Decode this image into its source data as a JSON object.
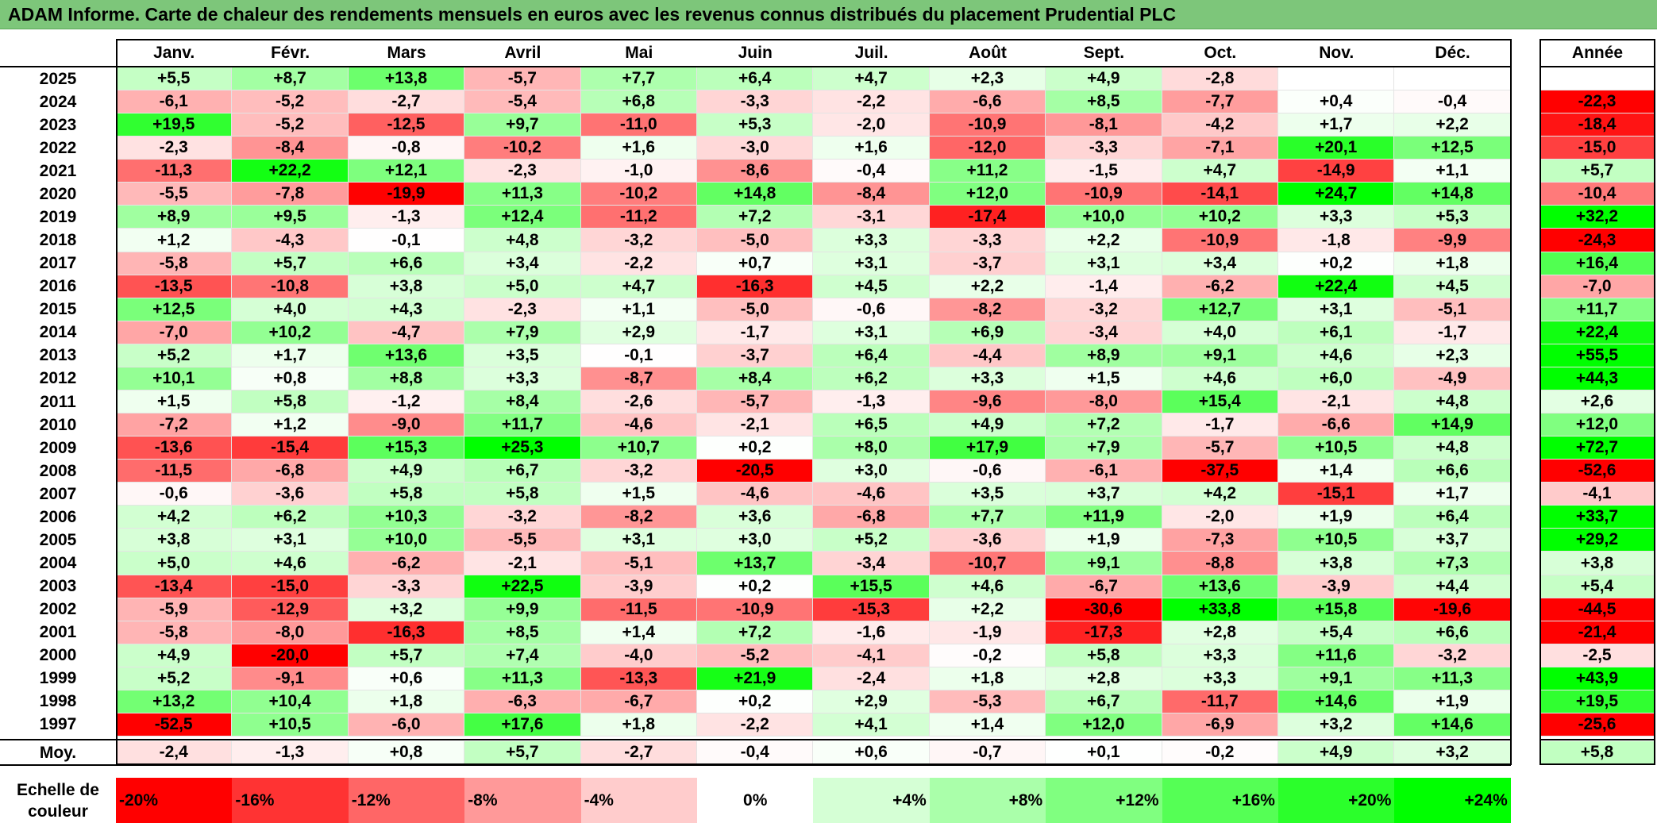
{
  "title": "ADAM Informe. Carte de chaleur des rendements mensuels en euros avec les revenus connus distribués du placement Prudential PLC",
  "months": [
    "Janv.",
    "Févr.",
    "Mars",
    "Avril",
    "Mai",
    "Juin",
    "Juil.",
    "Août",
    "Sept.",
    "Oct.",
    "Nov.",
    "Déc."
  ],
  "annual_header": "Année",
  "avg_label": "Moy.",
  "legend_label": "Echelle de couleur",
  "legend": [
    "-20%",
    "-16%",
    "-12%",
    "-8%",
    "-4%",
    "0%",
    "+4%",
    "+8%",
    "+12%",
    "+16%",
    "+20%",
    "+24%"
  ],
  "colors": {
    "negative": "#ff0000",
    "zero": "#ffffff",
    "positive": "#00ff00",
    "title_bar": "#7dc67a"
  },
  "chart_data": {
    "type": "heatmap",
    "title": "ADAM Informe. Carte de chaleur des rendements mensuels en euros avec les revenus connus distribués du placement Prudential PLC",
    "x": [
      "Janv.",
      "Févr.",
      "Mars",
      "Avril",
      "Mai",
      "Juin",
      "Juil.",
      "Août",
      "Sept.",
      "Oct.",
      "Nov.",
      "Déc.",
      "Année"
    ],
    "rows": [
      {
        "year": "2025",
        "values": [
          "+5,5",
          "+8,7",
          "+13,8",
          "-5,7",
          "+7,7",
          "+6,4",
          "+4,7",
          "+2,3",
          "+4,9",
          "-2,8",
          "",
          ""
        ],
        "annual": ""
      },
      {
        "year": "2024",
        "values": [
          "-6,1",
          "-5,2",
          "-2,7",
          "-5,4",
          "+6,8",
          "-3,3",
          "-2,2",
          "-6,6",
          "+8,5",
          "-7,7",
          "+0,4",
          "-0,4"
        ],
        "annual": "-22,3"
      },
      {
        "year": "2023",
        "values": [
          "+19,5",
          "-5,2",
          "-12,5",
          "+9,7",
          "-11,0",
          "+5,3",
          "-2,0",
          "-10,9",
          "-8,1",
          "-4,2",
          "+1,7",
          "+2,2"
        ],
        "annual": "-18,4"
      },
      {
        "year": "2022",
        "values": [
          "-2,3",
          "-8,4",
          "-0,8",
          "-10,2",
          "+1,6",
          "-3,0",
          "+1,6",
          "-12,0",
          "-3,3",
          "-7,1",
          "+20,1",
          "+12,5"
        ],
        "annual": "-15,0"
      },
      {
        "year": "2021",
        "values": [
          "-11,3",
          "+22,2",
          "+12,1",
          "-2,3",
          "-1,0",
          "-8,6",
          "-0,4",
          "+11,2",
          "-1,5",
          "+4,7",
          "-14,9",
          "+1,1"
        ],
        "annual": "+5,7"
      },
      {
        "year": "2020",
        "values": [
          "-5,5",
          "-7,8",
          "-19,9",
          "+11,3",
          "-10,2",
          "+14,8",
          "-8,4",
          "+12,0",
          "-10,9",
          "-14,1",
          "+24,7",
          "+14,8"
        ],
        "annual": "-10,4"
      },
      {
        "year": "2019",
        "values": [
          "+8,9",
          "+9,5",
          "-1,3",
          "+12,4",
          "-11,2",
          "+7,2",
          "-3,1",
          "-17,4",
          "+10,0",
          "+10,2",
          "+3,3",
          "+5,3"
        ],
        "annual": "+32,2"
      },
      {
        "year": "2018",
        "values": [
          "+1,2",
          "-4,3",
          "-0,1",
          "+4,8",
          "-3,2",
          "-5,0",
          "+3,3",
          "-3,3",
          "+2,2",
          "-10,9",
          "-1,8",
          "-9,9"
        ],
        "annual": "-24,3"
      },
      {
        "year": "2017",
        "values": [
          "-5,8",
          "+5,7",
          "+6,6",
          "+3,4",
          "-2,2",
          "+0,7",
          "+3,1",
          "-3,7",
          "+3,1",
          "+3,4",
          "+0,2",
          "+1,8"
        ],
        "annual": "+16,4"
      },
      {
        "year": "2016",
        "values": [
          "-13,5",
          "-10,8",
          "+3,8",
          "+5,0",
          "+4,7",
          "-16,3",
          "+4,5",
          "+2,2",
          "-1,4",
          "-6,2",
          "+22,4",
          "+4,5"
        ],
        "annual": "-7,0"
      },
      {
        "year": "2015",
        "values": [
          "+12,5",
          "+4,0",
          "+4,3",
          "-2,3",
          "+1,1",
          "-5,0",
          "-0,6",
          "-8,2",
          "-3,2",
          "+12,7",
          "+3,1",
          "-5,1"
        ],
        "annual": "+11,7"
      },
      {
        "year": "2014",
        "values": [
          "-7,0",
          "+10,2",
          "-4,7",
          "+7,9",
          "+2,9",
          "-1,7",
          "+3,1",
          "+6,9",
          "-3,4",
          "+4,0",
          "+6,1",
          "-1,7"
        ],
        "annual": "+22,4"
      },
      {
        "year": "2013",
        "values": [
          "+5,2",
          "+1,7",
          "+13,6",
          "+3,5",
          "-0,1",
          "-3,7",
          "+6,4",
          "-4,4",
          "+8,9",
          "+9,1",
          "+4,6",
          "+2,3"
        ],
        "annual": "+55,5"
      },
      {
        "year": "2012",
        "values": [
          "+10,1",
          "+0,8",
          "+8,8",
          "+3,3",
          "-8,7",
          "+8,4",
          "+6,2",
          "+3,3",
          "+1,5",
          "+4,6",
          "+6,0",
          "-4,9"
        ],
        "annual": "+44,3"
      },
      {
        "year": "2011",
        "values": [
          "+1,5",
          "+5,8",
          "-1,2",
          "+8,4",
          "-2,6",
          "-5,7",
          "-1,3",
          "-9,6",
          "-8,0",
          "+15,4",
          "-2,1",
          "+4,8"
        ],
        "annual": "+2,6"
      },
      {
        "year": "2010",
        "values": [
          "-7,2",
          "+1,2",
          "-9,0",
          "+11,7",
          "-4,6",
          "-2,1",
          "+6,5",
          "+4,9",
          "+7,2",
          "-1,7",
          "-6,6",
          "+14,9"
        ],
        "annual": "+12,0"
      },
      {
        "year": "2009",
        "values": [
          "-13,6",
          "-15,4",
          "+15,3",
          "+25,3",
          "+10,7",
          "+0,2",
          "+8,0",
          "+17,9",
          "+7,9",
          "-5,7",
          "+10,5",
          "+4,8"
        ],
        "annual": "+72,7"
      },
      {
        "year": "2008",
        "values": [
          "-11,5",
          "-6,8",
          "+4,9",
          "+6,7",
          "-3,2",
          "-20,5",
          "+3,0",
          "-0,6",
          "-6,1",
          "-37,5",
          "+1,4",
          "+6,6"
        ],
        "annual": "-52,6"
      },
      {
        "year": "2007",
        "values": [
          "-0,6",
          "-3,6",
          "+5,8",
          "+5,8",
          "+1,5",
          "-4,6",
          "-4,6",
          "+3,5",
          "+3,7",
          "+4,2",
          "-15,1",
          "+1,7"
        ],
        "annual": "-4,1"
      },
      {
        "year": "2006",
        "values": [
          "+4,2",
          "+6,2",
          "+10,3",
          "-3,2",
          "-8,2",
          "+3,6",
          "-6,8",
          "+7,7",
          "+11,9",
          "-2,0",
          "+1,9",
          "+6,4"
        ],
        "annual": "+33,7"
      },
      {
        "year": "2005",
        "values": [
          "+3,8",
          "+3,1",
          "+10,0",
          "-5,5",
          "+3,1",
          "+3,0",
          "+5,2",
          "-3,6",
          "+1,9",
          "-7,3",
          "+10,5",
          "+3,7"
        ],
        "annual": "+29,2"
      },
      {
        "year": "2004",
        "values": [
          "+5,0",
          "+4,6",
          "-6,2",
          "-2,1",
          "-5,1",
          "+13,7",
          "-3,4",
          "-10,7",
          "+9,1",
          "-8,8",
          "+3,8",
          "+7,3"
        ],
        "annual": "+3,8"
      },
      {
        "year": "2003",
        "values": [
          "-13,4",
          "-15,0",
          "-3,3",
          "+22,5",
          "-3,9",
          "+0,2",
          "+15,5",
          "+4,6",
          "-6,7",
          "+13,6",
          "-3,9",
          "+4,4"
        ],
        "annual": "+5,4"
      },
      {
        "year": "2002",
        "values": [
          "-5,9",
          "-12,9",
          "+3,2",
          "+9,9",
          "-11,5",
          "-10,9",
          "-15,3",
          "+2,2",
          "-30,6",
          "+33,8",
          "+15,8",
          "-19,6"
        ],
        "annual": "-44,5"
      },
      {
        "year": "2001",
        "values": [
          "-5,8",
          "-8,0",
          "-16,3",
          "+8,5",
          "+1,4",
          "+7,2",
          "-1,6",
          "-1,9",
          "-17,3",
          "+2,8",
          "+5,4",
          "+6,6"
        ],
        "annual": "-21,4"
      },
      {
        "year": "2000",
        "values": [
          "+4,9",
          "-20,0",
          "+5,7",
          "+7,4",
          "-4,0",
          "-5,2",
          "-4,1",
          "-0,2",
          "+5,8",
          "+3,3",
          "+11,6",
          "-3,2"
        ],
        "annual": "-2,5"
      },
      {
        "year": "1999",
        "values": [
          "+5,2",
          "-9,1",
          "+0,6",
          "+11,3",
          "-13,3",
          "+21,9",
          "-2,4",
          "+1,8",
          "+2,8",
          "+3,3",
          "+9,1",
          "+11,3"
        ],
        "annual": "+43,9"
      },
      {
        "year": "1998",
        "values": [
          "+13,2",
          "+10,4",
          "+1,8",
          "-6,3",
          "-6,7",
          "+0,2",
          "+2,9",
          "-5,3",
          "+6,7",
          "-11,7",
          "+14,6",
          "+1,9"
        ],
        "annual": "+19,5"
      },
      {
        "year": "1997",
        "values": [
          "-52,5",
          "+10,5",
          "-6,0",
          "+17,6",
          "+1,8",
          "-2,2",
          "+4,1",
          "+1,4",
          "+12,0",
          "-6,9",
          "+3,2",
          "+14,6"
        ],
        "annual": "-25,6"
      }
    ],
    "average": {
      "values": [
        "-2,4",
        "-1,3",
        "+0,8",
        "+5,7",
        "-2,7",
        "-0,4",
        "+0,6",
        "-0,7",
        "+0,1",
        "-0,2",
        "+4,9",
        "+3,2"
      ],
      "annual": "+5,8"
    },
    "color_scale": {
      "min": -20,
      "max": 24,
      "steps": [
        -20,
        -16,
        -12,
        -8,
        -4,
        0,
        4,
        8,
        12,
        16,
        20,
        24
      ]
    }
  }
}
